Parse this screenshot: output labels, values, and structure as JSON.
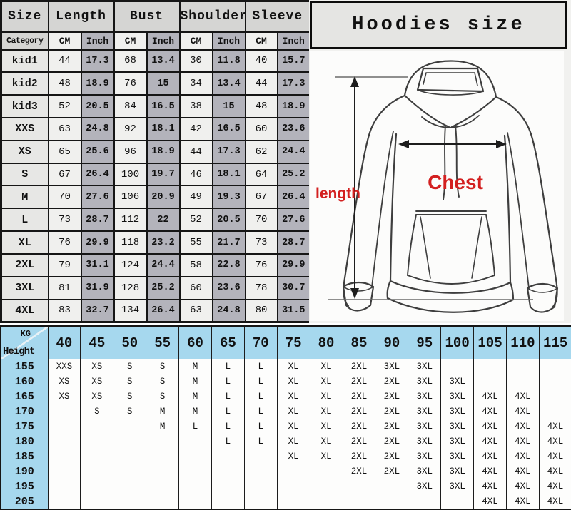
{
  "title": "Hoodies size",
  "diagram": {
    "length_label": "length",
    "chest_label": "Chest"
  },
  "size_table": {
    "corner_label": "Size",
    "category_label": "Category",
    "unit_cm": "CM",
    "unit_inch": "Inch",
    "groups": [
      "Length",
      "Bust",
      "Shoulder",
      "Sleeve"
    ]
  },
  "matrix": {
    "corner_top": "KG",
    "corner_bottom": "Height"
  },
  "colors": {
    "table_header_bg": "#d5d5d3",
    "inch_col_bg": "#b3b3bb",
    "cm_col_bg": "#f0f0ee",
    "label_col_bg": "#e7e7e5",
    "matrix_header_bg": "#a6d8ee",
    "matrix_cell_bg": "#fdfdfc",
    "accent_red": "#d32020",
    "border_dark": "#161616",
    "panel_bg": "#f1f1ef",
    "title_box_bg": "#e5e5e3"
  },
  "chart_data": [
    {
      "type": "table",
      "title": "Hoodies size measurements",
      "columns": [
        "Size/Category",
        "Length CM",
        "Length Inch",
        "Bust CM",
        "Bust Inch",
        "Shoulder CM",
        "Shoulder Inch",
        "Sleeve CM",
        "Sleeve Inch"
      ],
      "rows": [
        [
          "kid1",
          "44",
          "17.3",
          "68",
          "13.4",
          "30",
          "11.8",
          "40",
          "15.7"
        ],
        [
          "kid2",
          "48",
          "18.9",
          "76",
          "15",
          "34",
          "13.4",
          "44",
          "17.3"
        ],
        [
          "kid3",
          "52",
          "20.5",
          "84",
          "16.5",
          "38",
          "15",
          "48",
          "18.9"
        ],
        [
          "XXS",
          "63",
          "24.8",
          "92",
          "18.1",
          "42",
          "16.5",
          "60",
          "23.6"
        ],
        [
          "XS",
          "65",
          "25.6",
          "96",
          "18.9",
          "44",
          "17.3",
          "62",
          "24.4"
        ],
        [
          "S",
          "67",
          "26.4",
          "100",
          "19.7",
          "46",
          "18.1",
          "64",
          "25.2"
        ],
        [
          "M",
          "70",
          "27.6",
          "106",
          "20.9",
          "49",
          "19.3",
          "67",
          "26.4"
        ],
        [
          "L",
          "73",
          "28.7",
          "112",
          "22",
          "52",
          "20.5",
          "70",
          "27.6"
        ],
        [
          "XL",
          "76",
          "29.9",
          "118",
          "23.2",
          "55",
          "21.7",
          "73",
          "28.7"
        ],
        [
          "2XL",
          "79",
          "31.1",
          "124",
          "24.4",
          "58",
          "22.8",
          "76",
          "29.9"
        ],
        [
          "3XL",
          "81",
          "31.9",
          "128",
          "25.2",
          "60",
          "23.6",
          "78",
          "30.7"
        ],
        [
          "4XL",
          "83",
          "32.7",
          "134",
          "26.4",
          "63",
          "24.8",
          "80",
          "31.5"
        ]
      ]
    },
    {
      "type": "table",
      "title": "Size by Height (cm) and Weight (KG)",
      "columns": [
        "40",
        "45",
        "50",
        "55",
        "60",
        "65",
        "70",
        "75",
        "80",
        "85",
        "90",
        "95",
        "100",
        "105",
        "110",
        "115"
      ],
      "rows": [
        [
          "155",
          "XXS",
          "XS",
          "S",
          "S",
          "M",
          "L",
          "L",
          "XL",
          "XL",
          "2XL",
          "3XL",
          "3XL",
          "",
          "",
          "",
          ""
        ],
        [
          "160",
          "XS",
          "XS",
          "S",
          "S",
          "M",
          "L",
          "L",
          "XL",
          "XL",
          "2XL",
          "2XL",
          "3XL",
          "3XL",
          "",
          "",
          ""
        ],
        [
          "165",
          "XS",
          "XS",
          "S",
          "S",
          "M",
          "L",
          "L",
          "XL",
          "XL",
          "2XL",
          "2XL",
          "3XL",
          "3XL",
          "4XL",
          "4XL",
          ""
        ],
        [
          "170",
          "",
          "S",
          "S",
          "M",
          "M",
          "L",
          "L",
          "XL",
          "XL",
          "2XL",
          "2XL",
          "3XL",
          "3XL",
          "4XL",
          "4XL",
          ""
        ],
        [
          "175",
          "",
          "",
          "",
          "M",
          "L",
          "L",
          "L",
          "XL",
          "XL",
          "2XL",
          "2XL",
          "3XL",
          "3XL",
          "4XL",
          "4XL",
          "4XL"
        ],
        [
          "180",
          "",
          "",
          "",
          "",
          "",
          "L",
          "L",
          "XL",
          "XL",
          "2XL",
          "2XL",
          "3XL",
          "3XL",
          "4XL",
          "4XL",
          "4XL"
        ],
        [
          "185",
          "",
          "",
          "",
          "",
          "",
          "",
          "",
          "XL",
          "XL",
          "2XL",
          "2XL",
          "3XL",
          "3XL",
          "4XL",
          "4XL",
          "4XL"
        ],
        [
          "190",
          "",
          "",
          "",
          "",
          "",
          "",
          "",
          "",
          "",
          "2XL",
          "2XL",
          "3XL",
          "3XL",
          "4XL",
          "4XL",
          "4XL"
        ],
        [
          "195",
          "",
          "",
          "",
          "",
          "",
          "",
          "",
          "",
          "",
          "",
          "",
          "3XL",
          "3XL",
          "4XL",
          "4XL",
          "4XL"
        ],
        [
          "205",
          "",
          "",
          "",
          "",
          "",
          "",
          "",
          "",
          "",
          "",
          "",
          "",
          "",
          "4XL",
          "4XL",
          "4XL"
        ]
      ]
    }
  ]
}
